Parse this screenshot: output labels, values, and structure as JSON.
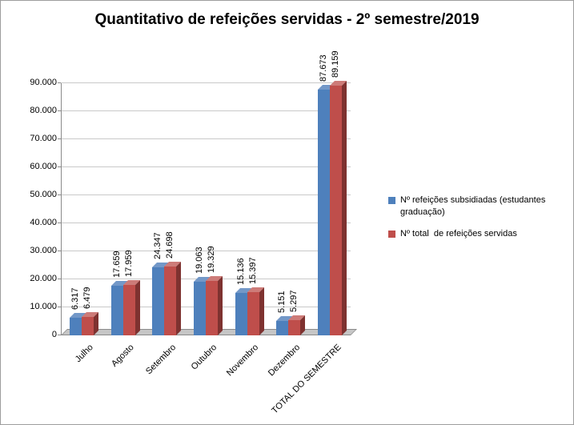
{
  "chart_data": {
    "type": "bar",
    "style": "3d-clustered-column",
    "title": "Quantitativo de refeições servidas - 2º semestre/2019",
    "categories": [
      "Julho",
      "Agosto",
      "Setembro",
      "Outubro",
      "Novembro",
      "Dezembro",
      "TOTAL DO SEMESTRE"
    ],
    "series": [
      {
        "name": "Nº refeições subsidiadas (estudantes graduação)",
        "color": "#4E80BC",
        "color_light": "#7398C8",
        "color_dark": "#2D4E77",
        "values": [
          6317,
          17659,
          24347,
          19063,
          15136,
          5151,
          87673
        ],
        "labels": [
          "6.317",
          "17.659",
          "24.347",
          "19.063",
          "15.136",
          "5.151",
          "87.673"
        ]
      },
      {
        "name": "Nº total  de refeições servidas",
        "color": "#BF4E4B",
        "color_light": "#CD7B78",
        "color_dark": "#7E3230",
        "values": [
          6479,
          17959,
          24698,
          19329,
          15397,
          5297,
          89159
        ],
        "labels": [
          "6.479",
          "17.959",
          "24.698",
          "19.329",
          "15.397",
          "5.297",
          "89.159"
        ]
      }
    ],
    "y_axis": {
      "min": 0,
      "max": 90000,
      "step": 10000,
      "tick_labels": [
        "0",
        "10.000",
        "20.000",
        "30.000",
        "40.000",
        "50.000",
        "60.000",
        "70.000",
        "80.000",
        "90.000"
      ]
    },
    "legend_position": "right",
    "grid": true,
    "data_labels": "rotated-vertical"
  }
}
